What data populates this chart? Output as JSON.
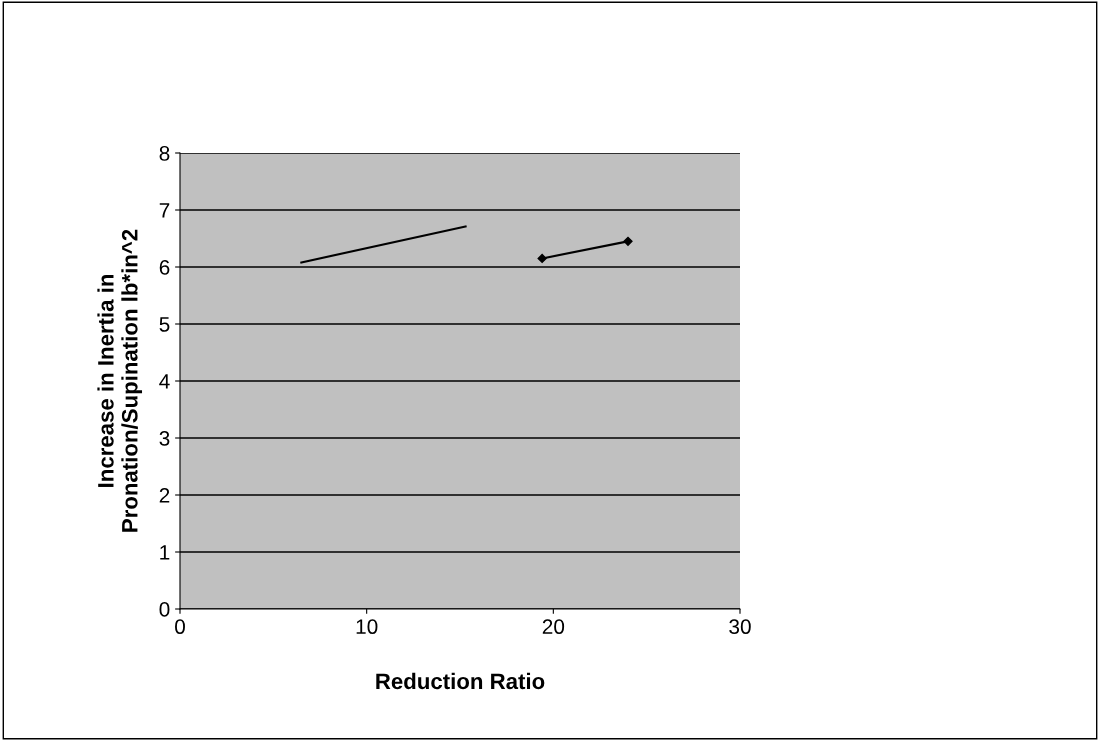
{
  "chart_data": {
    "type": "line",
    "xlabel": "Reduction Ratio",
    "ylabel": "Increase in Inertia in\nPronation/Supination lb*in^2",
    "series": [
      {
        "color": "#000000",
        "marker": "diamond",
        "x": [
          19.4,
          24.0
        ],
        "values": [
          6.15,
          6.45
        ]
      },
      {
        "color": "#000000",
        "marker": "none",
        "x": [
          6.5,
          15.3
        ],
        "values": [
          6.08,
          6.71
        ]
      }
    ],
    "xlim": [
      0,
      30
    ],
    "xticks": [
      0,
      10,
      20,
      30
    ],
    "ylim": [
      0,
      8
    ],
    "yticks": [
      0,
      1,
      2,
      3,
      4,
      5,
      6,
      7,
      8
    ],
    "grid": "y",
    "legend": false
  }
}
